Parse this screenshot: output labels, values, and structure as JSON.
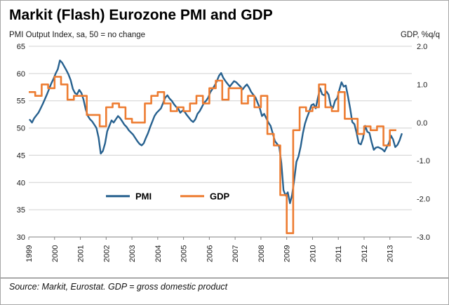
{
  "chart_data": {
    "type": "line",
    "title": "Markit (Flash) Eurozone PMI and GDP",
    "source": "Source: Markit, Eurostat. GDP = gross domestic product",
    "grid": true,
    "legend_position": "inside-bottom-left",
    "left_axis": {
      "label": "PMI Output Index, sa, 50 = no change",
      "range": [
        30,
        65
      ],
      "ticks": [
        65,
        60,
        55,
        50,
        45,
        40,
        35,
        30
      ]
    },
    "right_axis": {
      "label": "GDP, %q/q",
      "range": [
        -3.0,
        2.0
      ],
      "ticks": [
        "2.0",
        "1.0",
        "0.0",
        "-1.0",
        "-2.0",
        "-3.0"
      ]
    },
    "x_axis": {
      "range": [
        1999,
        2013.85
      ],
      "years": [
        "1999",
        "2000",
        "2001",
        "2002",
        "2003",
        "2004",
        "2005",
        "2006",
        "2007",
        "2008",
        "2009",
        "2010",
        "2011",
        "2012",
        "2013"
      ]
    },
    "series": [
      {
        "name": "PMI",
        "color": "#27618f",
        "axis": "left",
        "frequency": "monthly",
        "start": "1999-01",
        "values": [
          51.5,
          51.0,
          51.8,
          52.3,
          52.8,
          53.6,
          54.4,
          55.3,
          56.2,
          57.2,
          58.2,
          59.0,
          60.0,
          60.8,
          62.4,
          62.0,
          61.3,
          60.6,
          59.8,
          58.8,
          57.2,
          56.4,
          56.2,
          57.0,
          56.4,
          55.2,
          53.4,
          52.2,
          51.6,
          51.2,
          50.6,
          50.0,
          48.2,
          45.3,
          45.8,
          47.2,
          49.4,
          50.4,
          51.4,
          51.0,
          51.6,
          52.2,
          51.8,
          51.2,
          50.6,
          50.2,
          49.6,
          49.2,
          48.8,
          48.2,
          47.6,
          47.1,
          46.8,
          47.2,
          48.2,
          49.1,
          50.2,
          51.2,
          52.2,
          52.8,
          53.2,
          53.6,
          54.6,
          55.6,
          56.0,
          55.4,
          55.0,
          54.4,
          53.9,
          53.6,
          52.8,
          53.2,
          53.0,
          52.4,
          51.9,
          51.4,
          51.1,
          51.6,
          52.6,
          53.1,
          53.8,
          54.6,
          55.0,
          55.6,
          56.6,
          57.2,
          57.8,
          58.6,
          59.6,
          60.1,
          59.2,
          58.6,
          58.1,
          57.6,
          58.1,
          58.6,
          58.4,
          58.0,
          57.6,
          57.1,
          57.6,
          58.0,
          57.4,
          56.6,
          56.1,
          55.6,
          54.6,
          53.6,
          52.2,
          52.6,
          51.8,
          51.0,
          50.4,
          49.0,
          47.6,
          47.1,
          46.6,
          43.6,
          38.6,
          37.6,
          38.2,
          36.2,
          37.7,
          40.5,
          43.8,
          44.8,
          46.6,
          49.0,
          50.8,
          52.0,
          53.0,
          54.2,
          54.4,
          53.6,
          55.5,
          57.3,
          56.2,
          56.0,
          56.7,
          56.1,
          54.1,
          53.7,
          55.0,
          55.5,
          57.0,
          58.4,
          57.6,
          57.8,
          55.8,
          53.6,
          51.1,
          50.7,
          49.1,
          47.2,
          47.0,
          48.1,
          50.4,
          49.3,
          49.1,
          47.4,
          46.0,
          46.4,
          46.5,
          46.3,
          46.1,
          45.7,
          46.5,
          47.2,
          48.6,
          47.9,
          46.5,
          46.9,
          47.7,
          48.9
        ]
      },
      {
        "name": "GDP",
        "color": "#ed7c31",
        "axis": "right",
        "frequency": "quarterly",
        "start": "1999-Q1",
        "values": [
          0.8,
          0.7,
          1.0,
          0.9,
          1.2,
          1.0,
          0.6,
          0.7,
          0.7,
          0.2,
          0.2,
          -0.1,
          0.4,
          0.5,
          0.4,
          0.1,
          0.0,
          0.0,
          0.5,
          0.7,
          0.8,
          0.5,
          0.3,
          0.4,
          0.3,
          0.5,
          0.7,
          0.5,
          0.9,
          1.1,
          0.6,
          0.9,
          0.9,
          0.5,
          0.7,
          0.4,
          0.7,
          -0.3,
          -0.6,
          -1.9,
          -2.9,
          -0.2,
          0.4,
          0.3,
          0.4,
          1.0,
          0.4,
          0.3,
          0.8,
          0.1,
          0.1,
          -0.3,
          -0.1,
          -0.2,
          -0.1,
          -0.6,
          -0.2
        ]
      }
    ]
  }
}
